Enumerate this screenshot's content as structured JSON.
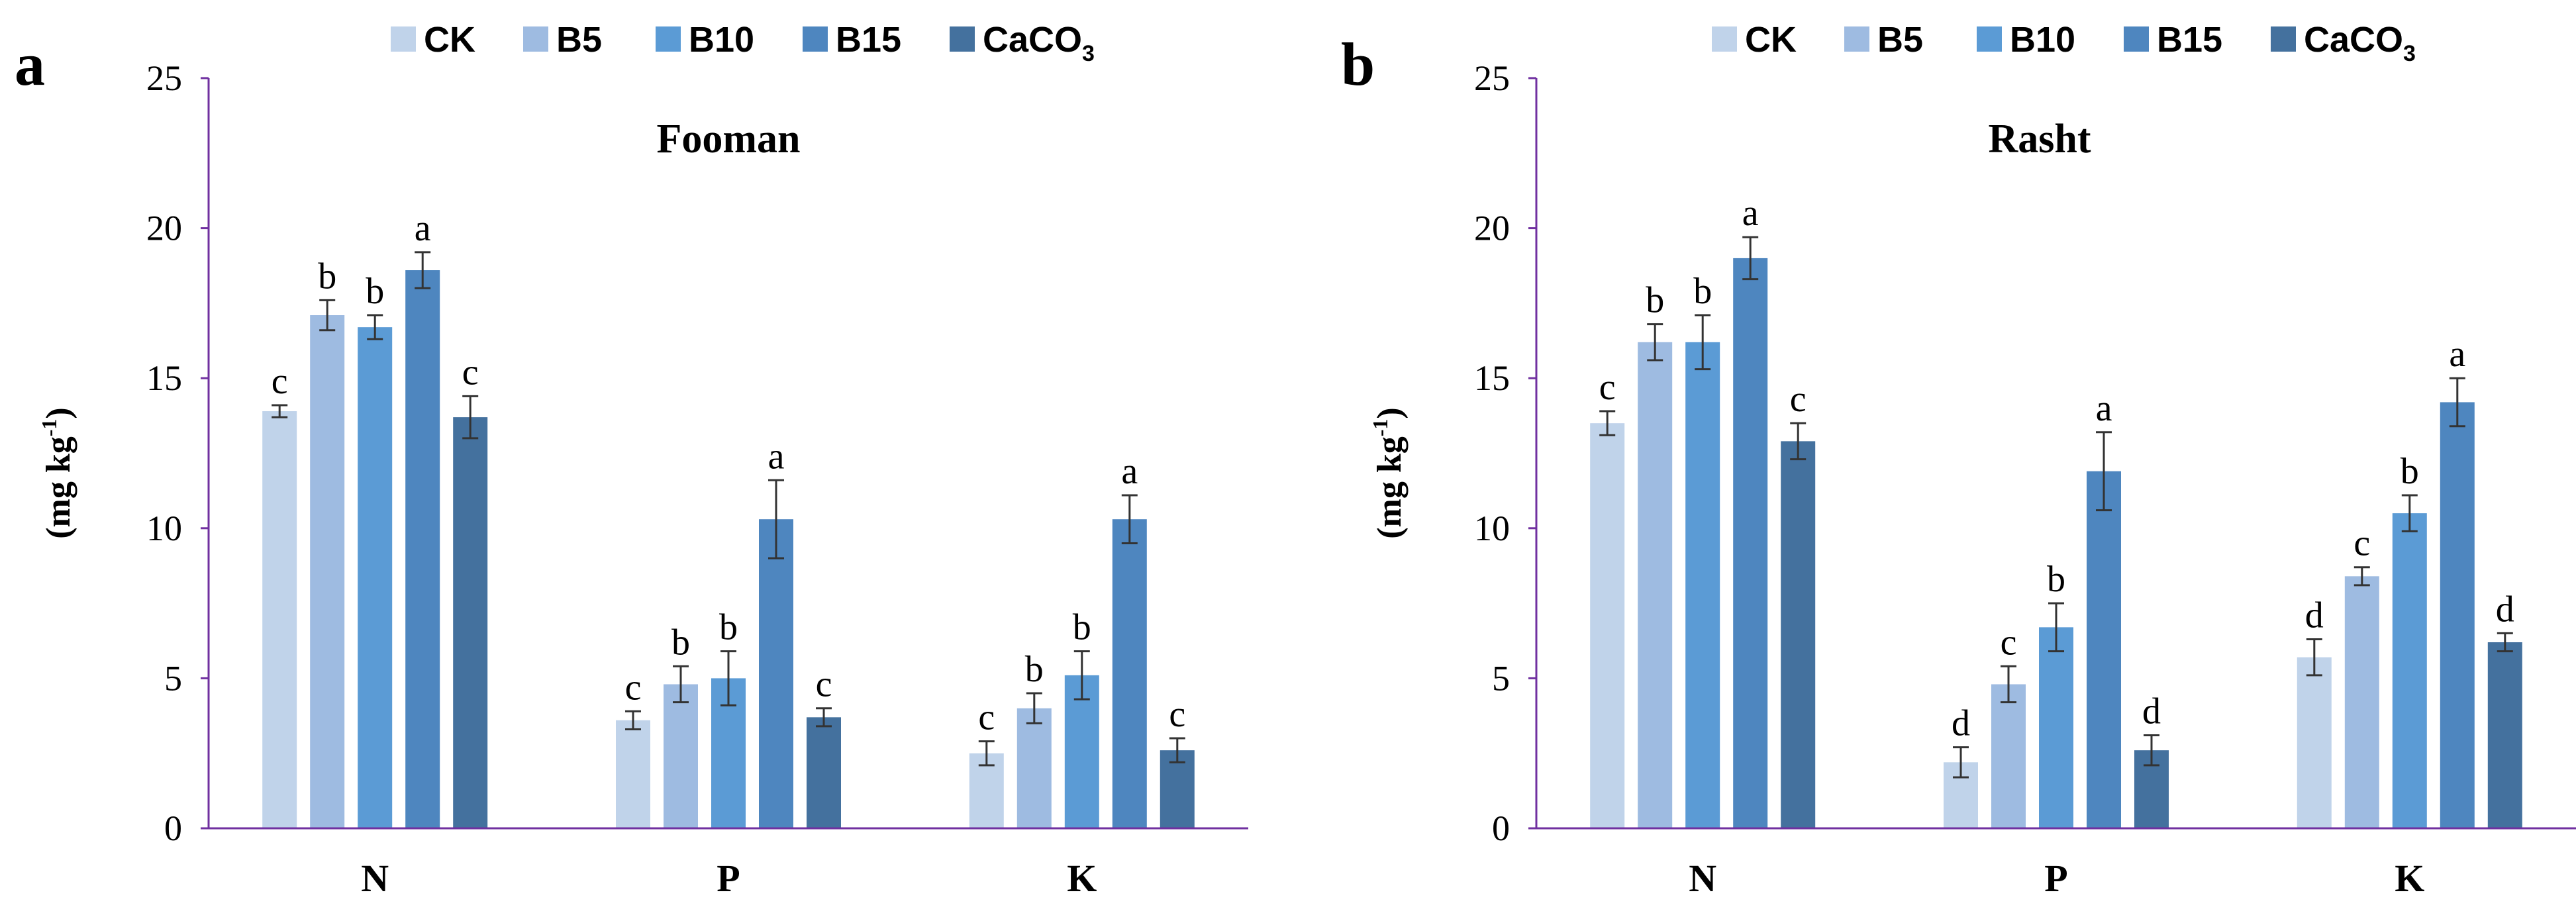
{
  "legend": [
    {
      "label": "CK",
      "color": "#c0d3ea"
    },
    {
      "label": "B5",
      "color": "#9ebbe1"
    },
    {
      "label": "B10",
      "color": "#5b9bd5"
    },
    {
      "label": "B15",
      "color": "#4e86bf"
    },
    {
      "label": "CaCO",
      "sub": "3",
      "color": "#44719e"
    }
  ],
  "axis_color": "#7030a0",
  "chart_data": [
    {
      "type": "bar",
      "panel": "a",
      "title": "Fooman",
      "ylabel": "(mg kg",
      "ylabel_sup": "-1",
      "ylabel_close": ")",
      "ylim": [
        0,
        25
      ],
      "yticks": [
        "0",
        "5",
        "10",
        "15",
        "20",
        "25"
      ],
      "categories": [
        "N",
        "P",
        "K"
      ],
      "series": [
        {
          "name": "CK",
          "values": [
            13.9,
            3.6,
            2.5
          ],
          "errors": [
            0.2,
            0.3,
            0.4
          ],
          "letters": [
            "c",
            "c",
            "c"
          ]
        },
        {
          "name": "B5",
          "values": [
            17.1,
            4.8,
            4.0
          ],
          "errors": [
            0.5,
            0.6,
            0.5
          ],
          "letters": [
            "b",
            "b",
            "b"
          ]
        },
        {
          "name": "B10",
          "values": [
            16.7,
            5.0,
            5.1
          ],
          "errors": [
            0.4,
            0.9,
            0.8
          ],
          "letters": [
            "b",
            "b",
            "b"
          ]
        },
        {
          "name": "B15",
          "values": [
            18.6,
            10.3,
            10.3
          ],
          "errors": [
            0.6,
            1.3,
            0.8
          ],
          "letters": [
            "a",
            "a",
            "a"
          ]
        },
        {
          "name": "CaCO3",
          "values": [
            13.7,
            3.7,
            2.6
          ],
          "errors": [
            0.7,
            0.3,
            0.4
          ],
          "letters": [
            "c",
            "c",
            "c"
          ]
        }
      ]
    },
    {
      "type": "bar",
      "panel": "b",
      "title": "Rasht",
      "ylabel": "(mg kg",
      "ylabel_sup": "-1",
      "ylabel_close": ")",
      "ylim": [
        0,
        25
      ],
      "yticks": [
        "0",
        "5",
        "10",
        "15",
        "20",
        "25"
      ],
      "categories": [
        "N",
        "P",
        "K"
      ],
      "series": [
        {
          "name": "CK",
          "values": [
            13.5,
            2.2,
            5.7
          ],
          "errors": [
            0.4,
            0.5,
            0.6
          ],
          "letters": [
            "c",
            "d",
            "d"
          ]
        },
        {
          "name": "B5",
          "values": [
            16.2,
            4.8,
            8.4
          ],
          "errors": [
            0.6,
            0.6,
            0.3
          ],
          "letters": [
            "b",
            "c",
            "c"
          ]
        },
        {
          "name": "B10",
          "values": [
            16.2,
            6.7,
            10.5
          ],
          "errors": [
            0.9,
            0.8,
            0.6
          ],
          "letters": [
            "b",
            "b",
            "b"
          ]
        },
        {
          "name": "B15",
          "values": [
            19.0,
            11.9,
            14.2
          ],
          "errors": [
            0.7,
            1.3,
            0.8
          ],
          "letters": [
            "a",
            "a",
            "a"
          ]
        },
        {
          "name": "CaCO3",
          "values": [
            12.9,
            2.6,
            6.2
          ],
          "errors": [
            0.6,
            0.5,
            0.3
          ],
          "letters": [
            "c",
            "d",
            "d"
          ]
        }
      ]
    }
  ]
}
